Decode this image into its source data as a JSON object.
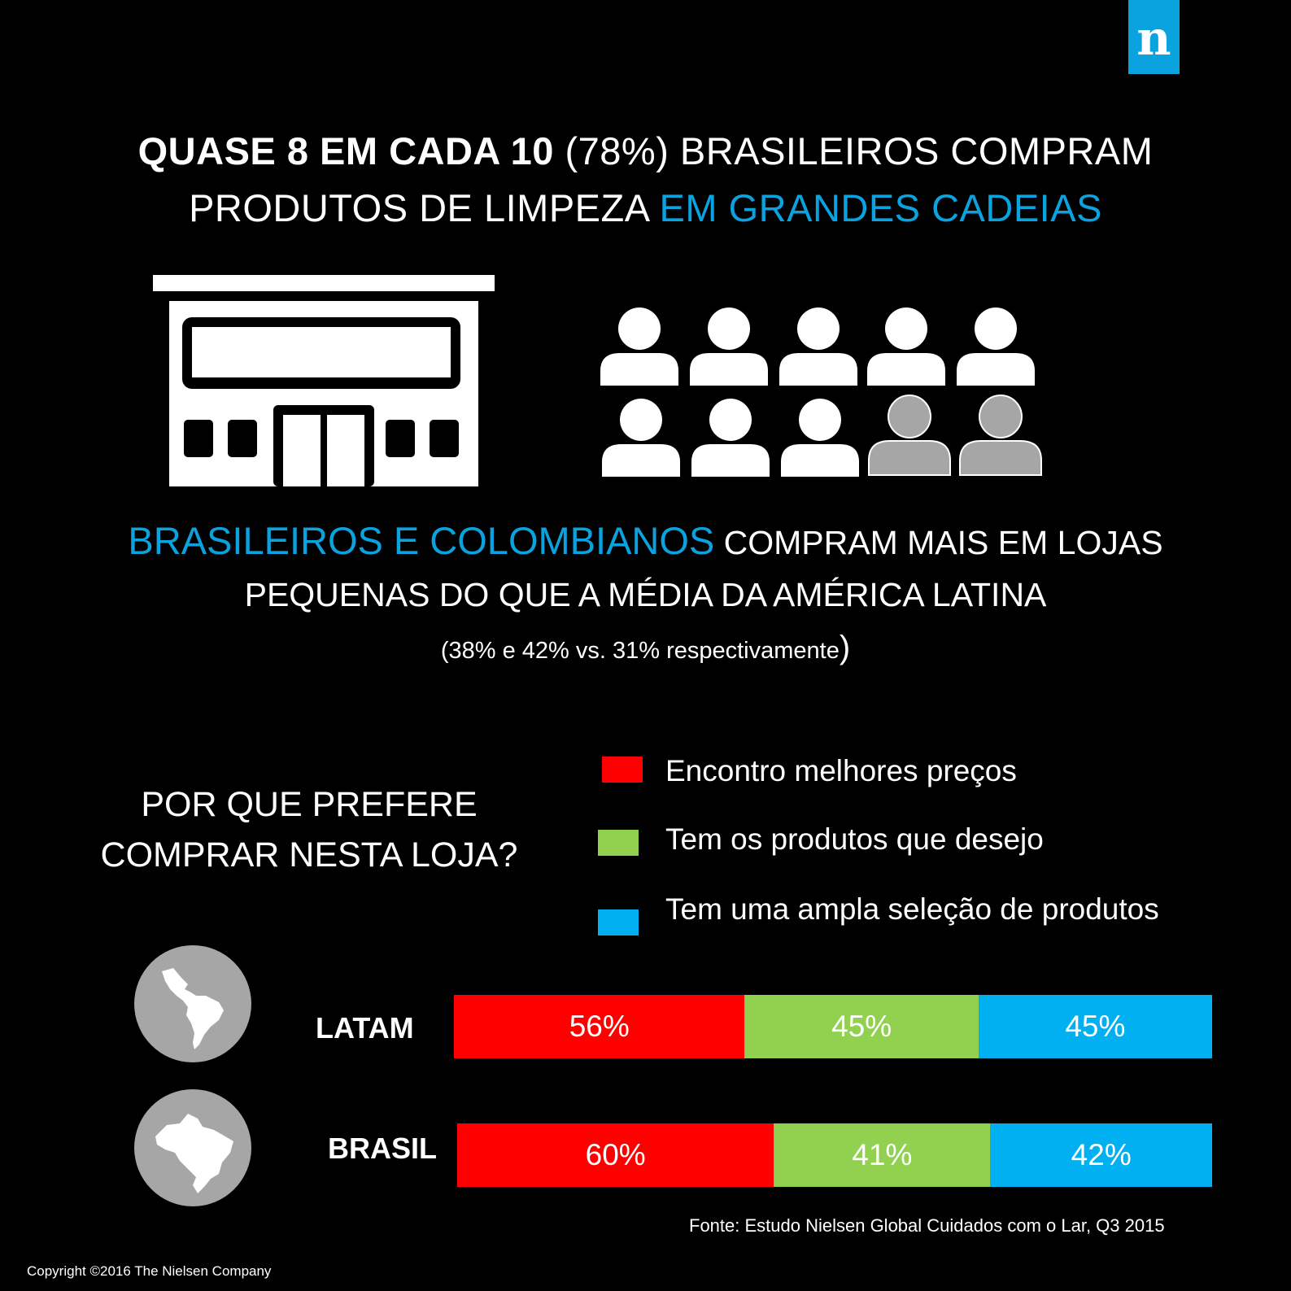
{
  "logo": {
    "letter": "n"
  },
  "headline": {
    "line1_bold": "QUASE 8 EM CADA 10",
    "line1_rest": " (78%) BRASILEIROS COMPRAM",
    "line2_white": "PRODUTOS DE LIMPEZA ",
    "line2_blue": "EM GRANDES CADEIAS"
  },
  "icons": {
    "store": "store-building-icon",
    "people": "person-icon",
    "people_highlighted": 8,
    "people_total": 10
  },
  "subheadline": {
    "line1_blue": "BRASILEIROS E COLOMBIANOS",
    "line1_rest": " COMPRAM MAIS EM LOJAS",
    "line2": "PEQUENAS DO QUE A MÉDIA DA AMÉRICA LATINA",
    "line3": "(38% e 42% vs. 31% respectivamente",
    "line3_close": ")"
  },
  "question": {
    "line1": "POR QUE PREFERE",
    "line2": "COMPRAR NESTA LOJA?"
  },
  "colors": {
    "red": "#ff0000",
    "green": "#92d050",
    "blue": "#00b0f0",
    "accent": "#0aa3df",
    "globe": "#a6a6a6"
  },
  "chart_data": {
    "type": "bar",
    "orientation": "horizontal-stacked",
    "categories": [
      "LATAM",
      "BRASIL"
    ],
    "series": [
      {
        "name": "Encontro melhores preços",
        "color": "#ff0000",
        "values": [
          56,
          60
        ]
      },
      {
        "name": "Tem os produtos que desejo",
        "color": "#92d050",
        "values": [
          45,
          41
        ]
      },
      {
        "name": "Tem uma ampla seleção de produtos",
        "color": "#00b0f0",
        "values": [
          45,
          42
        ]
      }
    ],
    "data_labels": [
      [
        "56%",
        "45%",
        "45%"
      ],
      [
        "60%",
        "41%",
        "42%"
      ]
    ],
    "category_icons": [
      "latin-america-globe-icon",
      "brazil-map-icon"
    ]
  },
  "source": "Fonte: Estudo Nielsen Global Cuidados com o Lar, Q3 2015",
  "copyright": "Copyright ©2016 The Nielsen Company"
}
